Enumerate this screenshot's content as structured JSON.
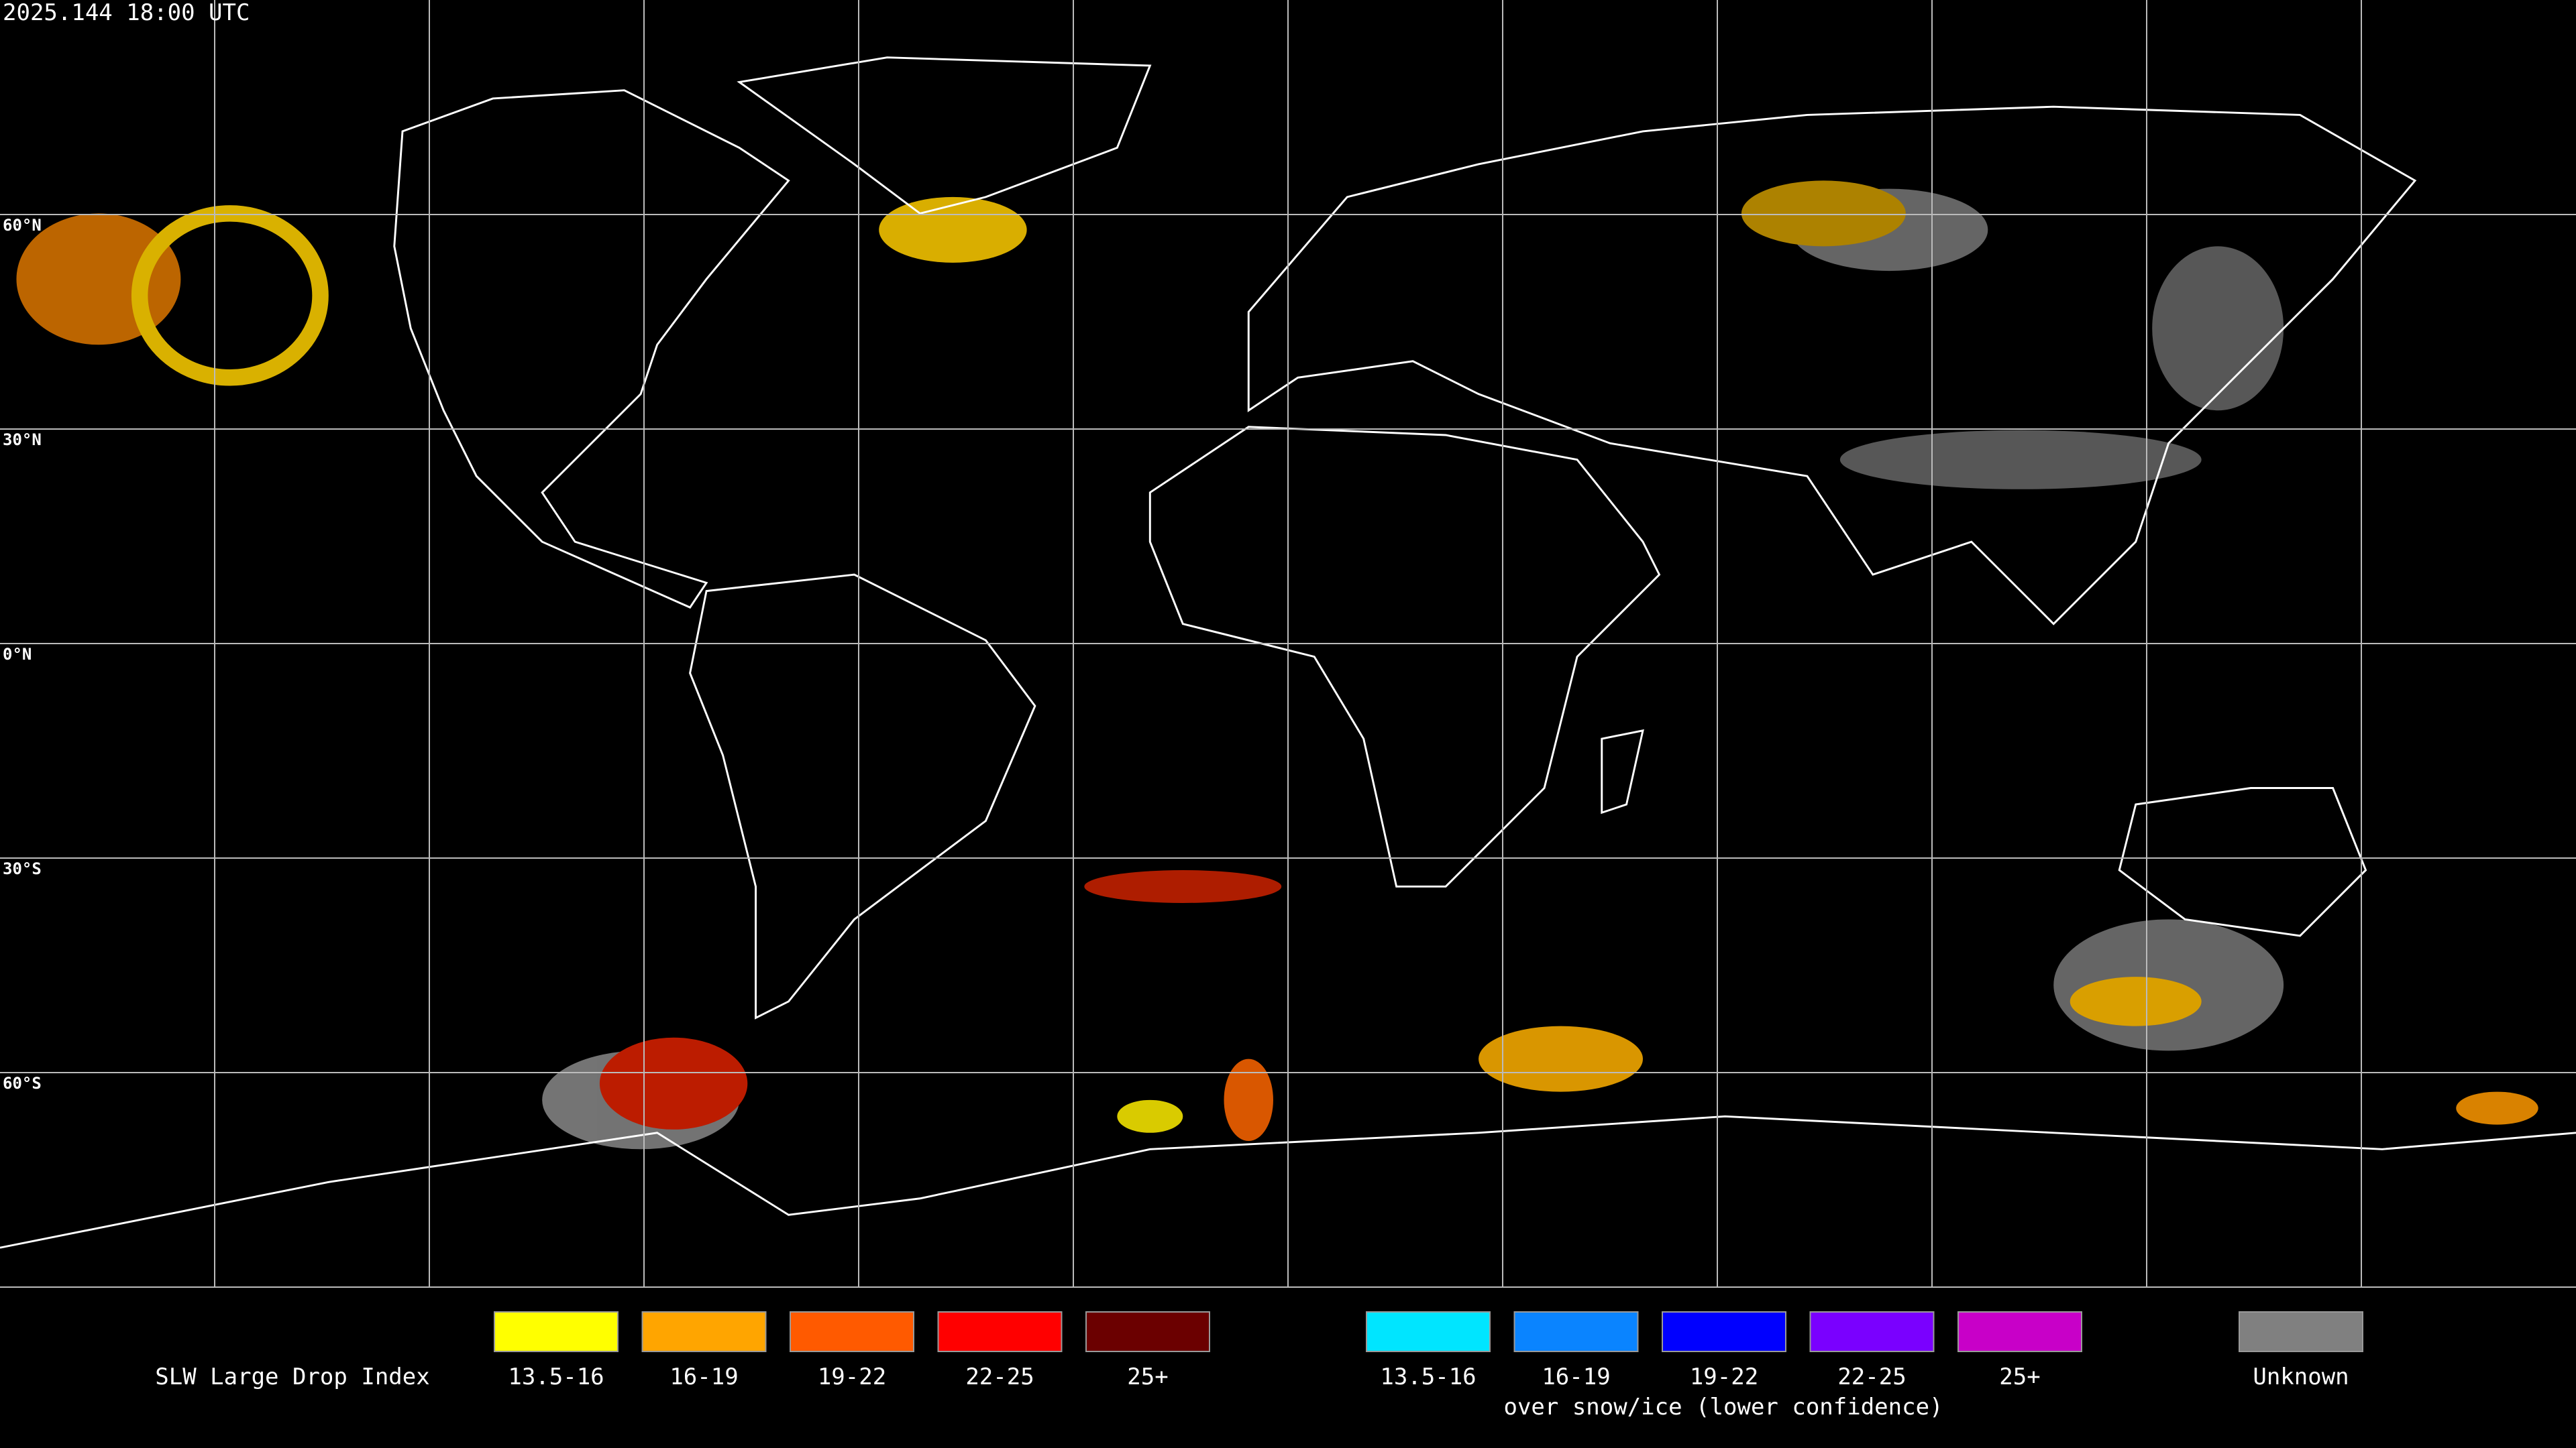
{
  "header": {
    "timestamp": "2025.144 18:00 UTC"
  },
  "map": {
    "latitude_labels": [
      "60°N",
      "30°N",
      "0°N",
      "30°S",
      "60°S"
    ]
  },
  "legend": {
    "title": "SLW Large Drop Index",
    "groups": [
      {
        "items": [
          {
            "label": "13.5-16",
            "color": "#ffff00"
          },
          {
            "label": "16-19",
            "color": "#ffa500"
          },
          {
            "label": "19-22",
            "color": "#ff5a00"
          },
          {
            "label": "22-25",
            "color": "#ff0000"
          },
          {
            "label": "25+",
            "color": "#6b0000"
          }
        ]
      },
      {
        "caption": "over snow/ice (lower confidence)",
        "items": [
          {
            "label": "13.5-16",
            "color": "#00e5ff"
          },
          {
            "label": "16-19",
            "color": "#0a84ff"
          },
          {
            "label": "19-22",
            "color": "#0000ff"
          },
          {
            "label": "22-25",
            "color": "#7a00ff"
          },
          {
            "label": "25+",
            "color": "#c800c8"
          }
        ]
      }
    ],
    "unknown": {
      "label": "Unknown",
      "color": "#808080"
    }
  }
}
